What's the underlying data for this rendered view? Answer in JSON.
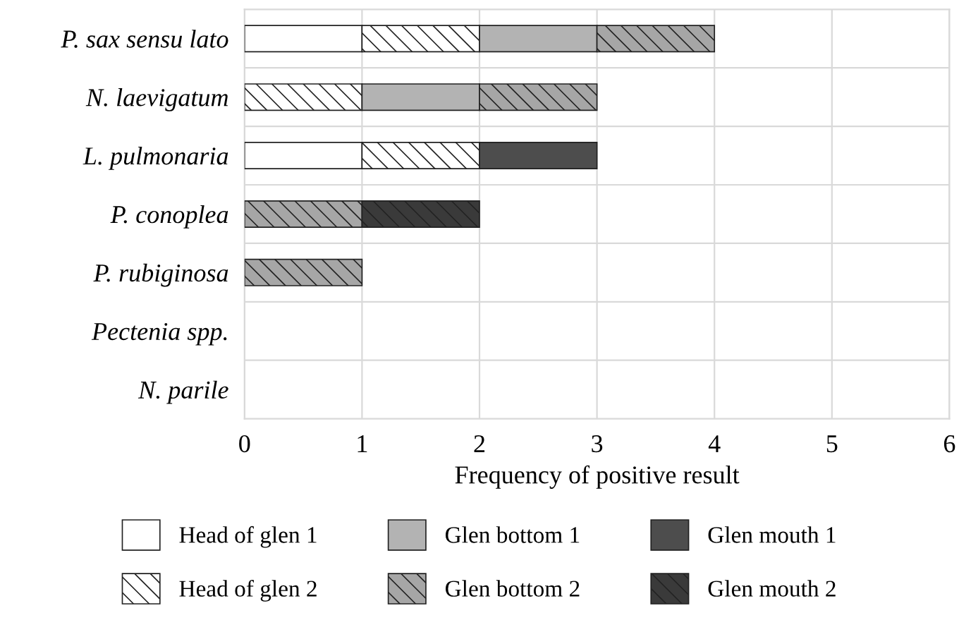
{
  "chart_data": {
    "type": "bar",
    "orientation": "horizontal",
    "stacked": true,
    "xlabel": "Frequency of positive result",
    "categories": [
      "P. sax sensu lato",
      "N. laevigatum",
      "L. pulmonaria",
      "P. conoplea",
      "P. rubiginosa",
      "Pectenia spp.",
      "N. parile"
    ],
    "series": [
      {
        "name": "Head of glen 1",
        "color": "#ffffff",
        "values": [
          1,
          null,
          1,
          null,
          null,
          null,
          null
        ]
      },
      {
        "name": "Head of glen 2",
        "color": "#ffffff",
        "values": [
          1,
          1,
          1,
          null,
          null,
          null,
          null
        ]
      },
      {
        "name": "Glen bottom 1",
        "color": "#b3b3b3",
        "values": [
          1,
          1,
          null,
          null,
          null,
          null,
          null
        ]
      },
      {
        "name": "Glen bottom 2",
        "color": "#a6a6a6",
        "values": [
          1,
          1,
          null,
          1,
          1,
          null,
          null
        ]
      },
      {
        "name": "Glen mouth 1",
        "color": "#4d4d4d",
        "values": [
          null,
          null,
          1,
          null,
          null,
          null,
          null
        ]
      },
      {
        "name": "Glen mouth 2",
        "color": "#3a3a3a",
        "values": [
          null,
          null,
          null,
          1,
          null,
          null,
          null
        ]
      }
    ],
    "xlim": [
      0,
      6
    ],
    "xticks": [
      0,
      1,
      2,
      3,
      4,
      5,
      6
    ],
    "grid": true,
    "legend": "bottom"
  }
}
